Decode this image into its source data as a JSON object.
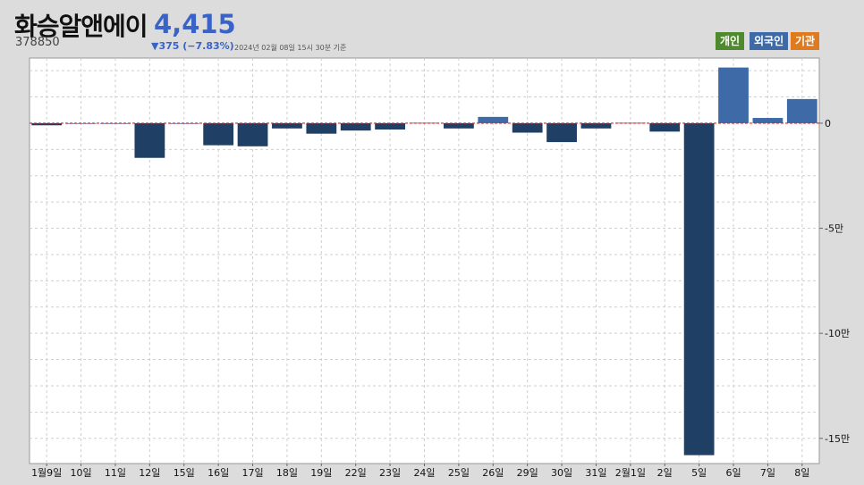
{
  "header": {
    "stock_name": "화승알앤에이",
    "stock_code": "378850",
    "price": "4,415",
    "change": "▼375 (−7.83%)",
    "as_of": "2024년 02월 08일 15시 30분 기준"
  },
  "legend": [
    {
      "label": "개인",
      "color": "#4f8a2e"
    },
    {
      "label": "외국인",
      "color": "#3e6aa7"
    },
    {
      "label": "기관",
      "color": "#e07a1f"
    }
  ],
  "chart_data": {
    "type": "bar",
    "categories": [
      "1월9일",
      "10일",
      "11일",
      "12일",
      "15일",
      "16일",
      "17일",
      "18일",
      "19일",
      "22일",
      "23일",
      "24일",
      "25일",
      "26일",
      "29일",
      "30일",
      "31일",
      "2월1일",
      "2일",
      "5일",
      "6일",
      "7일",
      "8일"
    ],
    "values": [
      -1000,
      0,
      0,
      -16500,
      0,
      -10500,
      -11000,
      -2500,
      -5000,
      -3500,
      -3000,
      200,
      -2500,
      3000,
      -4500,
      -9000,
      -2500,
      200,
      -4000,
      -158000,
      26500,
      2500,
      11500
    ],
    "ylim": [
      -162000,
      31000
    ],
    "yticks": [
      0,
      -50000,
      -100000,
      -150000
    ],
    "ytick_labels": [
      "0",
      "-5만",
      "-10만",
      "-15만"
    ],
    "colors": {
      "positive": "#3e6aa7",
      "negative": "#203f64",
      "zero_line": "#e02020"
    },
    "grid": true
  }
}
